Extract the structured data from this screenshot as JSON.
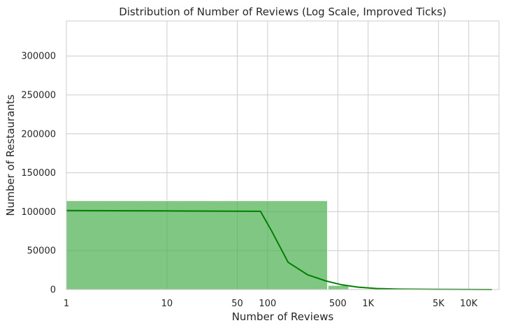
{
  "chart_data": {
    "type": "bar",
    "title": "Distribution of Number of Reviews (Log Scale, Improved Ticks)",
    "xlabel": "Number of Reviews",
    "ylabel": "Number of Restaurants",
    "x_scale": "log",
    "xlim": [
      1,
      20000
    ],
    "ylim": [
      0,
      345000
    ],
    "x_ticks": [
      {
        "value": 1,
        "label": "1"
      },
      {
        "value": 10,
        "label": "10"
      },
      {
        "value": 50,
        "label": "50"
      },
      {
        "value": 100,
        "label": "100"
      },
      {
        "value": 500,
        "label": "500"
      },
      {
        "value": 1000,
        "label": "1K"
      },
      {
        "value": 5000,
        "label": "5K"
      },
      {
        "value": 10000,
        "label": "10K"
      }
    ],
    "y_ticks": [
      0,
      50000,
      100000,
      150000,
      200000,
      250000,
      300000
    ],
    "grid": true,
    "colors": {
      "bars": "#4caf50",
      "kde": "#008000",
      "grid": "#cccccc"
    },
    "series": [
      {
        "type": "histogram",
        "bins": [
          {
            "x0": 1,
            "x1": 400,
            "count": 114000
          },
          {
            "x0": 400,
            "x1": 650,
            "count": 5200
          },
          {
            "x0": 650,
            "x1": 1300,
            "count": 900
          },
          {
            "x0": 1300,
            "x1": 2600,
            "count": 300
          },
          {
            "x0": 2600,
            "x1": 5000,
            "count": 120
          },
          {
            "x0": 5000,
            "x1": 10000,
            "count": 60
          },
          {
            "x0": 10000,
            "x1": 17000,
            "count": 20
          }
        ]
      },
      {
        "type": "line",
        "points": [
          {
            "x": 1,
            "y": 101500
          },
          {
            "x": 10,
            "y": 101000
          },
          {
            "x": 85,
            "y": 100500
          },
          {
            "x": 110,
            "y": 75000
          },
          {
            "x": 160,
            "y": 35000
          },
          {
            "x": 250,
            "y": 19000
          },
          {
            "x": 380,
            "y": 11000
          },
          {
            "x": 550,
            "y": 6000
          },
          {
            "x": 800,
            "y": 3000
          },
          {
            "x": 1200,
            "y": 1400
          },
          {
            "x": 2000,
            "y": 600
          },
          {
            "x": 5000,
            "y": 200
          },
          {
            "x": 17000,
            "y": 50
          }
        ]
      }
    ]
  }
}
